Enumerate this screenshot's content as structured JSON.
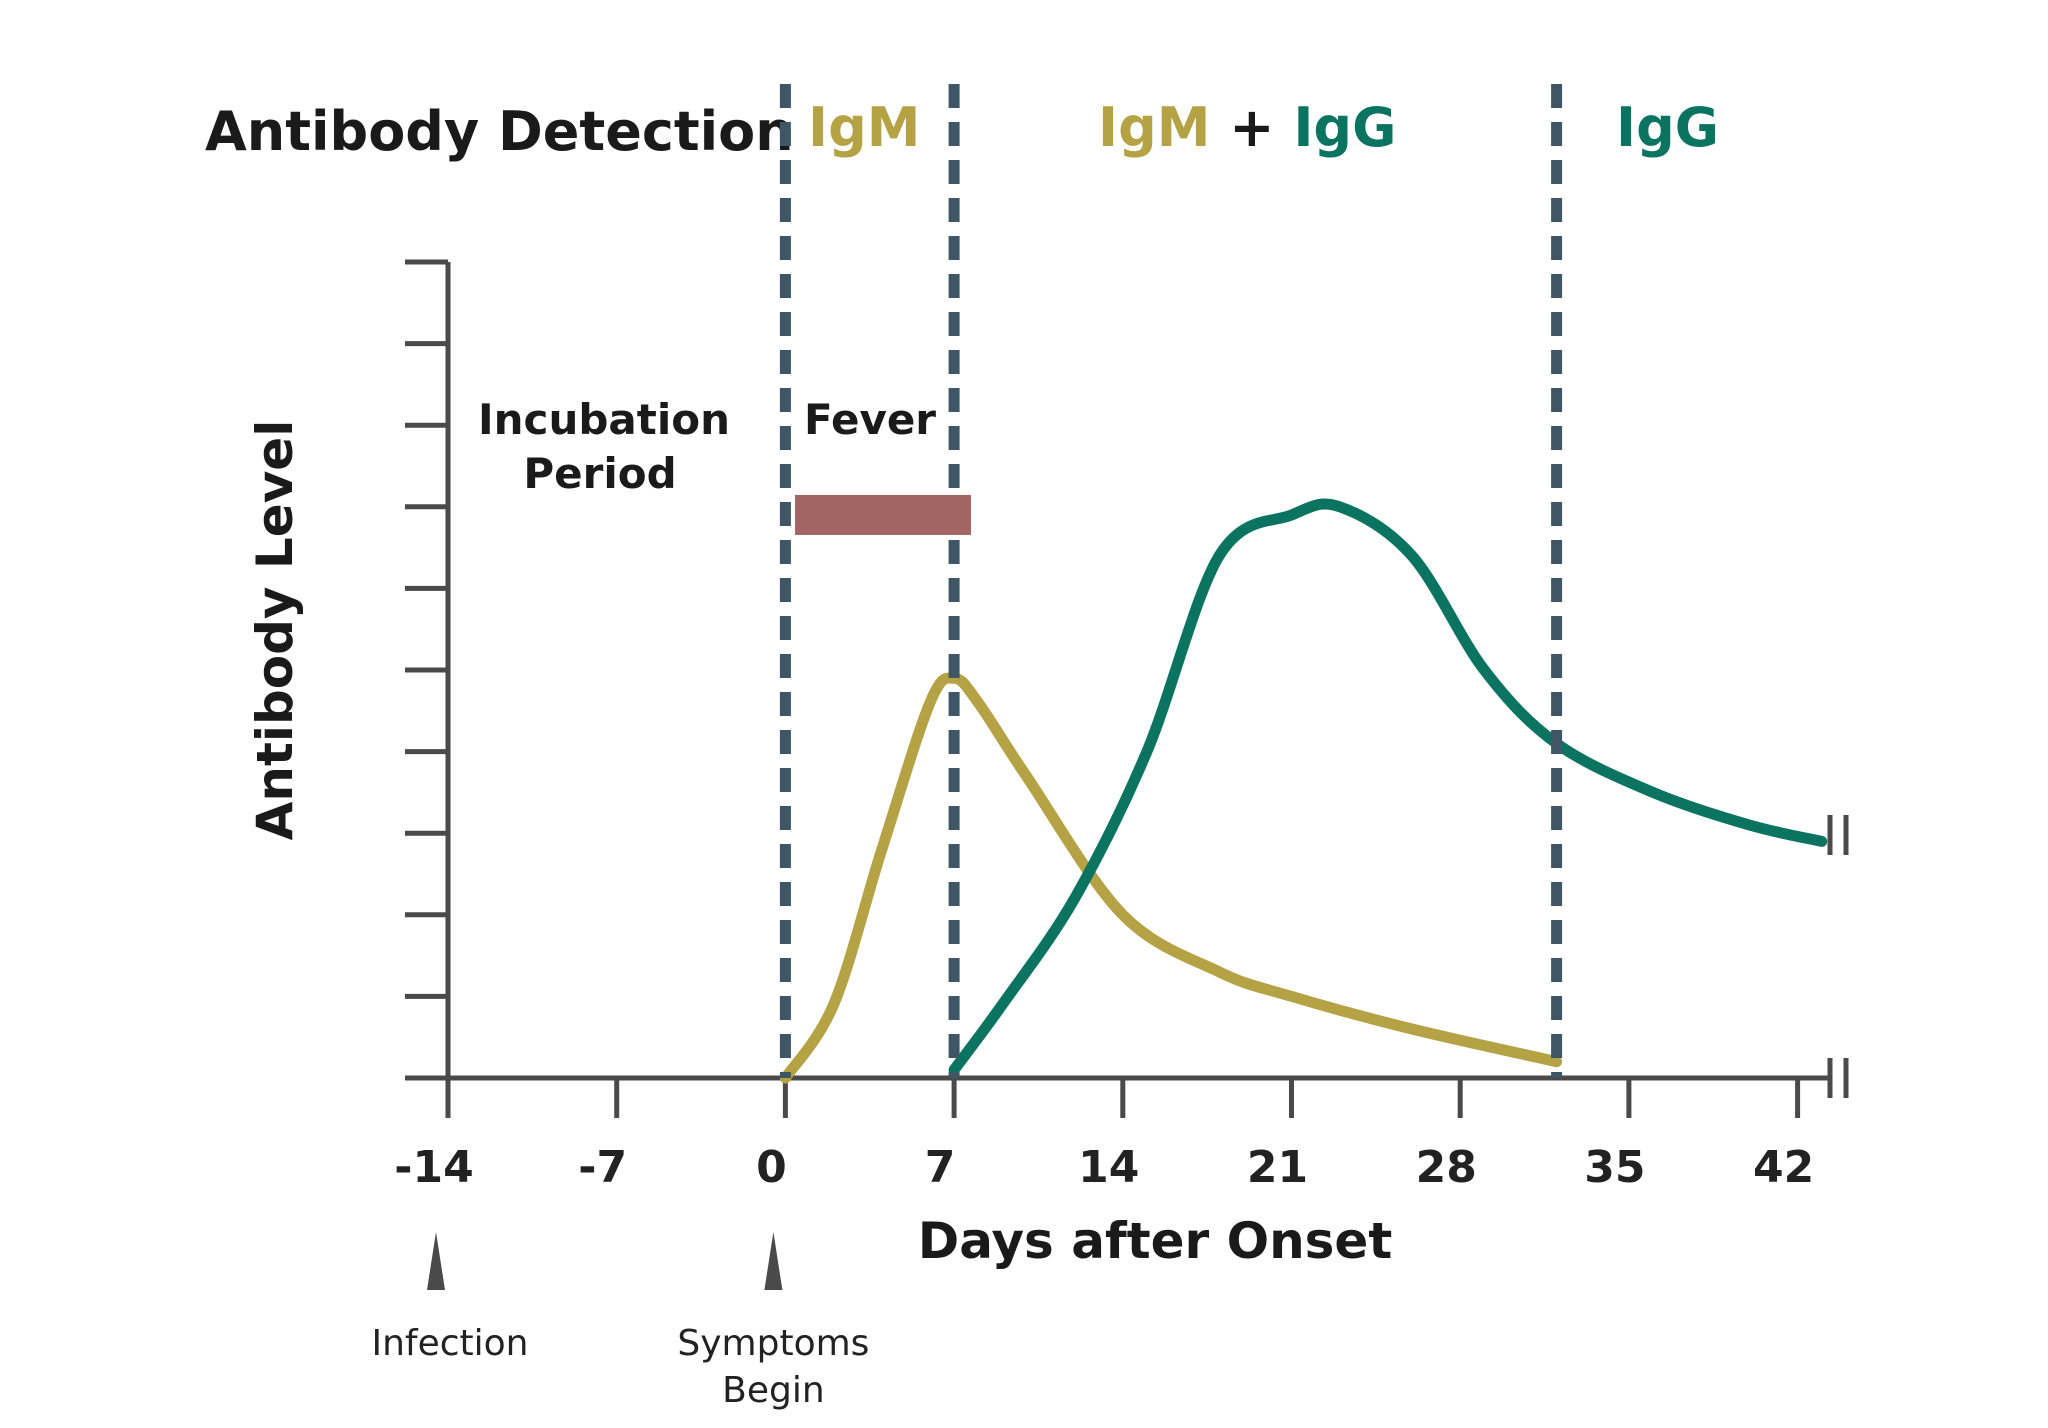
{
  "colors": {
    "igm": "#B5A244",
    "igg": "#0A7460",
    "axis": "#4a4a4a",
    "divider": "#3f5666",
    "fever": "#A36464",
    "text": "#1a1a1a"
  },
  "chart_data": {
    "type": "line",
    "title": "",
    "xlabel": "Days after Onset",
    "ylabel": "Antibody Level",
    "x_ticks": [
      -14,
      -7,
      0,
      7,
      14,
      21,
      28,
      35,
      42
    ],
    "x_tick_labels": [
      "-14",
      "-7",
      "0",
      "7",
      "14",
      "21",
      "28",
      "35",
      "42"
    ],
    "xlim": [
      -14,
      43
    ],
    "ylim": [
      0,
      10
    ],
    "y_tick_count": 10,
    "y_tick_labels": [],
    "grid": false,
    "series": [
      {
        "name": "IgM",
        "color_key": "igm",
        "x": [
          0,
          2,
          4,
          6,
          7,
          8,
          10,
          14,
          18,
          21,
          26,
          32
        ],
        "y": [
          0,
          0.9,
          2.8,
          4.6,
          4.9,
          4.6,
          3.7,
          2.0,
          1.3,
          1.0,
          0.6,
          0.2
        ]
      },
      {
        "name": "IgG",
        "color_key": "igg",
        "x": [
          7,
          9,
          12,
          15,
          18,
          21,
          23,
          26,
          29,
          32,
          36,
          40,
          43
        ],
        "y": [
          0.1,
          0.9,
          2.2,
          4.0,
          6.4,
          6.9,
          7.0,
          6.4,
          5.0,
          4.1,
          3.5,
          3.1,
          2.9
        ]
      }
    ],
    "dividers_x": [
      0,
      7,
      32
    ],
    "detection_header": {
      "title": "Antibody Detection",
      "segments": [
        {
          "parts": [
            {
              "text": "IgM",
              "color_key": "igm"
            }
          ]
        },
        {
          "parts": [
            {
              "text": "IgM",
              "color_key": "igm"
            },
            {
              "text": " + ",
              "color_key": "text"
            },
            {
              "text": "IgG",
              "color_key": "igg"
            }
          ]
        },
        {
          "parts": [
            {
              "text": "IgG",
              "color_key": "igg"
            }
          ]
        }
      ]
    },
    "annotations": {
      "incubation": [
        "Incubation",
        "Period"
      ],
      "fever": "Fever",
      "fever_bar": {
        "x_start": 0.4,
        "x_end": 7.7,
        "level": 6.9
      }
    },
    "markers": [
      {
        "x": -14,
        "lines": [
          "Infection"
        ]
      },
      {
        "x": 0,
        "lines": [
          "Symptoms",
          "Begin"
        ]
      }
    ]
  }
}
